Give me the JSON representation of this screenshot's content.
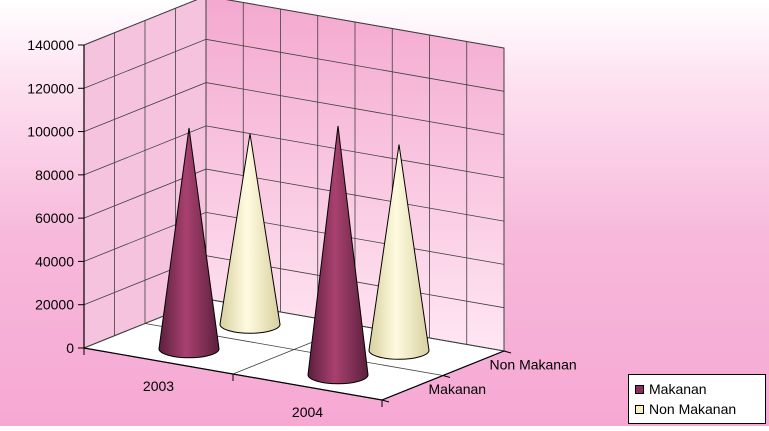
{
  "chart_data": {
    "type": "bar",
    "style": "3d-cone",
    "categories": [
      "2003",
      "2004"
    ],
    "series": [
      {
        "name": "Makanan",
        "values": [
          102000,
          115000
        ],
        "color": "#8b2f5f",
        "light": "#a8416f",
        "dark": "#5c1f3e"
      },
      {
        "name": "Non Makanan",
        "values": [
          88000,
          95000
        ],
        "color": "#f6f0c4",
        "light": "#fffbe0",
        "dark": "#d8d0a0"
      }
    ],
    "depth_labels": [
      "Makanan",
      "Non Makanan"
    ],
    "ylim": [
      0,
      140000
    ],
    "yticks": [
      "0",
      "20000",
      "40000",
      "60000",
      "80000",
      "100000",
      "120000",
      "140000"
    ],
    "title": "",
    "xlabel": "",
    "ylabel": "",
    "grid": true,
    "legend_position": "bottom-right"
  },
  "legend": {
    "items": [
      {
        "label": "Makanan",
        "color": "#8b2f5f"
      },
      {
        "label": "Non Makanan",
        "color": "#f6f0c4"
      }
    ]
  }
}
